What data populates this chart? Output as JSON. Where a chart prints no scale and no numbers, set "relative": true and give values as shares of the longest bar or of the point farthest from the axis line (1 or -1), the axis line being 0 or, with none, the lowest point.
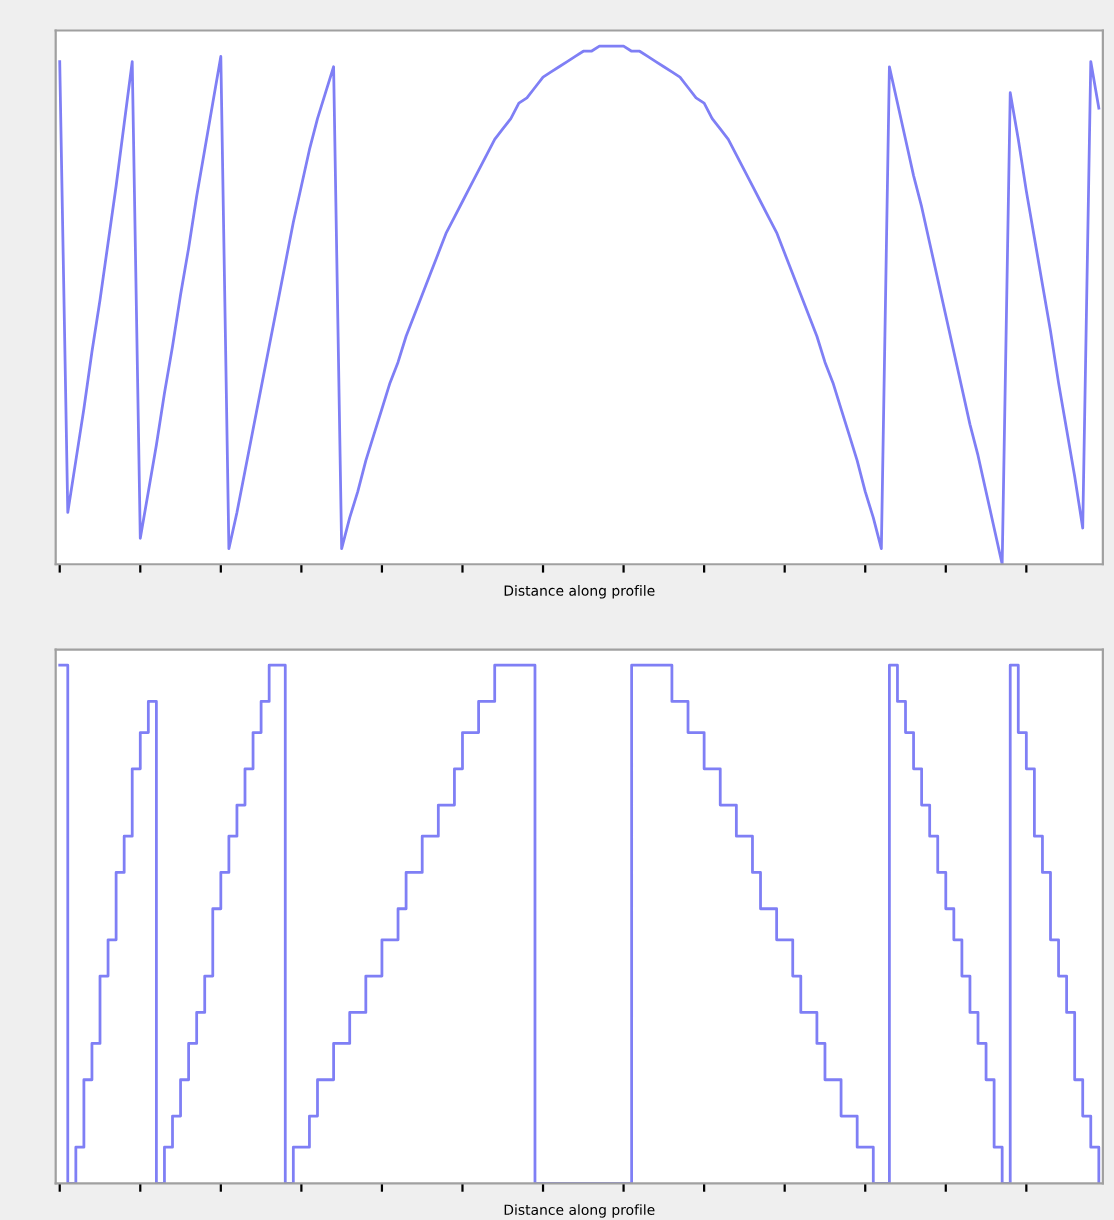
{
  "chart_data": [
    {
      "type": "line",
      "xlabel": "Distance along profile",
      "relative": true,
      "grid": false,
      "legend": false,
      "categories": [
        null,
        null,
        null,
        null,
        null,
        null,
        null,
        null,
        null,
        null,
        null,
        null,
        null,
        null,
        null,
        null,
        null,
        null,
        null,
        null,
        null,
        null,
        null,
        null,
        null,
        null,
        null,
        null,
        null,
        null,
        null,
        null,
        null,
        null,
        null,
        null,
        null,
        null,
        null,
        null,
        null,
        null,
        null,
        null,
        null,
        null,
        null,
        null,
        null,
        null,
        null,
        null,
        null,
        null,
        null,
        null,
        null,
        null,
        null,
        null,
        null,
        null,
        null,
        null,
        null,
        null,
        null,
        null,
        null,
        null,
        null,
        null,
        null,
        null,
        null,
        null,
        null,
        null,
        null,
        null,
        null,
        null,
        null,
        null,
        null,
        null,
        null,
        null,
        null,
        null,
        null,
        null,
        null,
        null,
        null,
        null,
        null,
        null,
        null,
        null,
        null,
        null,
        null,
        null,
        null,
        null,
        null,
        null,
        null,
        null,
        null,
        null,
        null,
        null,
        null,
        null,
        null,
        null,
        null,
        null,
        null,
        null,
        null,
        null,
        null,
        null,
        null,
        null,
        null,
        null
      ],
      "series": [
        {
          "color": "#7f7ff5",
          "values": [
            0.97,
            0.1,
            0.2,
            0.3,
            0.41,
            0.51,
            0.62,
            0.73,
            0.85,
            0.97,
            0.05,
            0.14,
            0.23,
            0.33,
            0.42,
            0.52,
            0.61,
            0.71,
            0.8,
            0.89,
            0.98,
            0.03,
            0.1,
            0.18,
            0.26,
            0.34,
            0.42,
            0.5,
            0.58,
            0.66,
            0.73,
            0.8,
            0.86,
            0.91,
            0.96,
            0.03,
            0.09,
            0.14,
            0.2,
            0.25,
            0.3,
            0.35,
            0.39,
            0.44,
            0.48,
            0.52,
            0.56,
            0.6,
            0.64,
            0.67,
            0.7,
            0.73,
            0.76,
            0.79,
            0.82,
            0.84,
            0.86,
            0.89,
            0.9,
            0.92,
            0.94,
            0.95,
            0.96,
            0.97,
            0.98,
            0.99,
            0.99,
            1,
            1,
            1,
            1,
            0.99,
            0.99,
            0.98,
            0.97,
            0.96,
            0.95,
            0.94,
            0.92,
            0.9,
            0.89,
            0.86,
            0.84,
            0.82,
            0.79,
            0.76,
            0.73,
            0.7,
            0.67,
            0.64,
            0.6,
            0.56,
            0.52,
            0.48,
            0.44,
            0.39,
            0.35,
            0.3,
            0.25,
            0.2,
            0.14,
            0.09,
            0.03,
            0.96,
            0.89,
            0.82,
            0.75,
            0.69,
            0.62,
            0.55,
            0.48,
            0.41,
            0.34,
            0.27,
            0.21,
            0.14,
            0.07,
            0,
            0.91,
            0.82,
            0.72,
            0.63,
            0.54,
            0.45,
            0.35,
            0.26,
            0.17,
            0.07,
            0.97,
            0.88
          ]
        }
      ]
    },
    {
      "type": "step",
      "xlabel": "Distance along profile",
      "relative": true,
      "grid": false,
      "legend": false,
      "categories": [
        null,
        null,
        null,
        null,
        null,
        null,
        null,
        null,
        null,
        null,
        null,
        null,
        null,
        null,
        null,
        null,
        null,
        null,
        null,
        null,
        null,
        null,
        null,
        null,
        null,
        null,
        null,
        null,
        null,
        null,
        null,
        null,
        null,
        null,
        null,
        null,
        null,
        null,
        null,
        null,
        null,
        null,
        null,
        null,
        null,
        null,
        null,
        null,
        null,
        null,
        null,
        null,
        null,
        null,
        null,
        null,
        null,
        null,
        null,
        null,
        null,
        null,
        null,
        null,
        null,
        null,
        null,
        null,
        null,
        null,
        null,
        null,
        null,
        null,
        null,
        null,
        null,
        null,
        null,
        null,
        null,
        null,
        null,
        null,
        null,
        null,
        null,
        null,
        null,
        null,
        null,
        null,
        null,
        null,
        null,
        null,
        null,
        null,
        null,
        null,
        null,
        null,
        null,
        null,
        null,
        null,
        null,
        null,
        null,
        null,
        null,
        null,
        null,
        null,
        null,
        null,
        null,
        null,
        null,
        null,
        null,
        null,
        null,
        null,
        null,
        null,
        null,
        null,
        null,
        null
      ],
      "series": [
        {
          "color": "#7f7ff5",
          "values": [
            1,
            0,
            0.07,
            0.2,
            0.27,
            0.4,
            0.47,
            0.6,
            0.67,
            0.8,
            0.87,
            0.93,
            0,
            0.07,
            0.13,
            0.2,
            0.27,
            0.33,
            0.4,
            0.53,
            0.6,
            0.67,
            0.73,
            0.8,
            0.87,
            0.93,
            1,
            1,
            0,
            0.07,
            0.07,
            0.13,
            0.2,
            0.2,
            0.27,
            0.27,
            0.33,
            0.33,
            0.4,
            0.4,
            0.47,
            0.47,
            0.53,
            0.6,
            0.6,
            0.67,
            0.67,
            0.73,
            0.73,
            0.8,
            0.87,
            0.87,
            0.93,
            0.93,
            1,
            1,
            1,
            1,
            1,
            0,
            0,
            0,
            0,
            0,
            0,
            0,
            0,
            0,
            0,
            0,
            0,
            1,
            1,
            1,
            1,
            1,
            0.93,
            0.93,
            0.87,
            0.87,
            0.8,
            0.8,
            0.73,
            0.73,
            0.67,
            0.67,
            0.6,
            0.53,
            0.53,
            0.47,
            0.47,
            0.4,
            0.33,
            0.33,
            0.27,
            0.2,
            0.2,
            0.13,
            0.13,
            0.07,
            0.07,
            0,
            0,
            1,
            0.93,
            0.87,
            0.8,
            0.73,
            0.67,
            0.6,
            0.53,
            0.47,
            0.4,
            0.33,
            0.27,
            0.2,
            0.07,
            0,
            1,
            0.87,
            0.8,
            0.67,
            0.6,
            0.47,
            0.4,
            0.33,
            0.2,
            0.13,
            0.07,
            0
          ]
        }
      ]
    }
  ]
}
